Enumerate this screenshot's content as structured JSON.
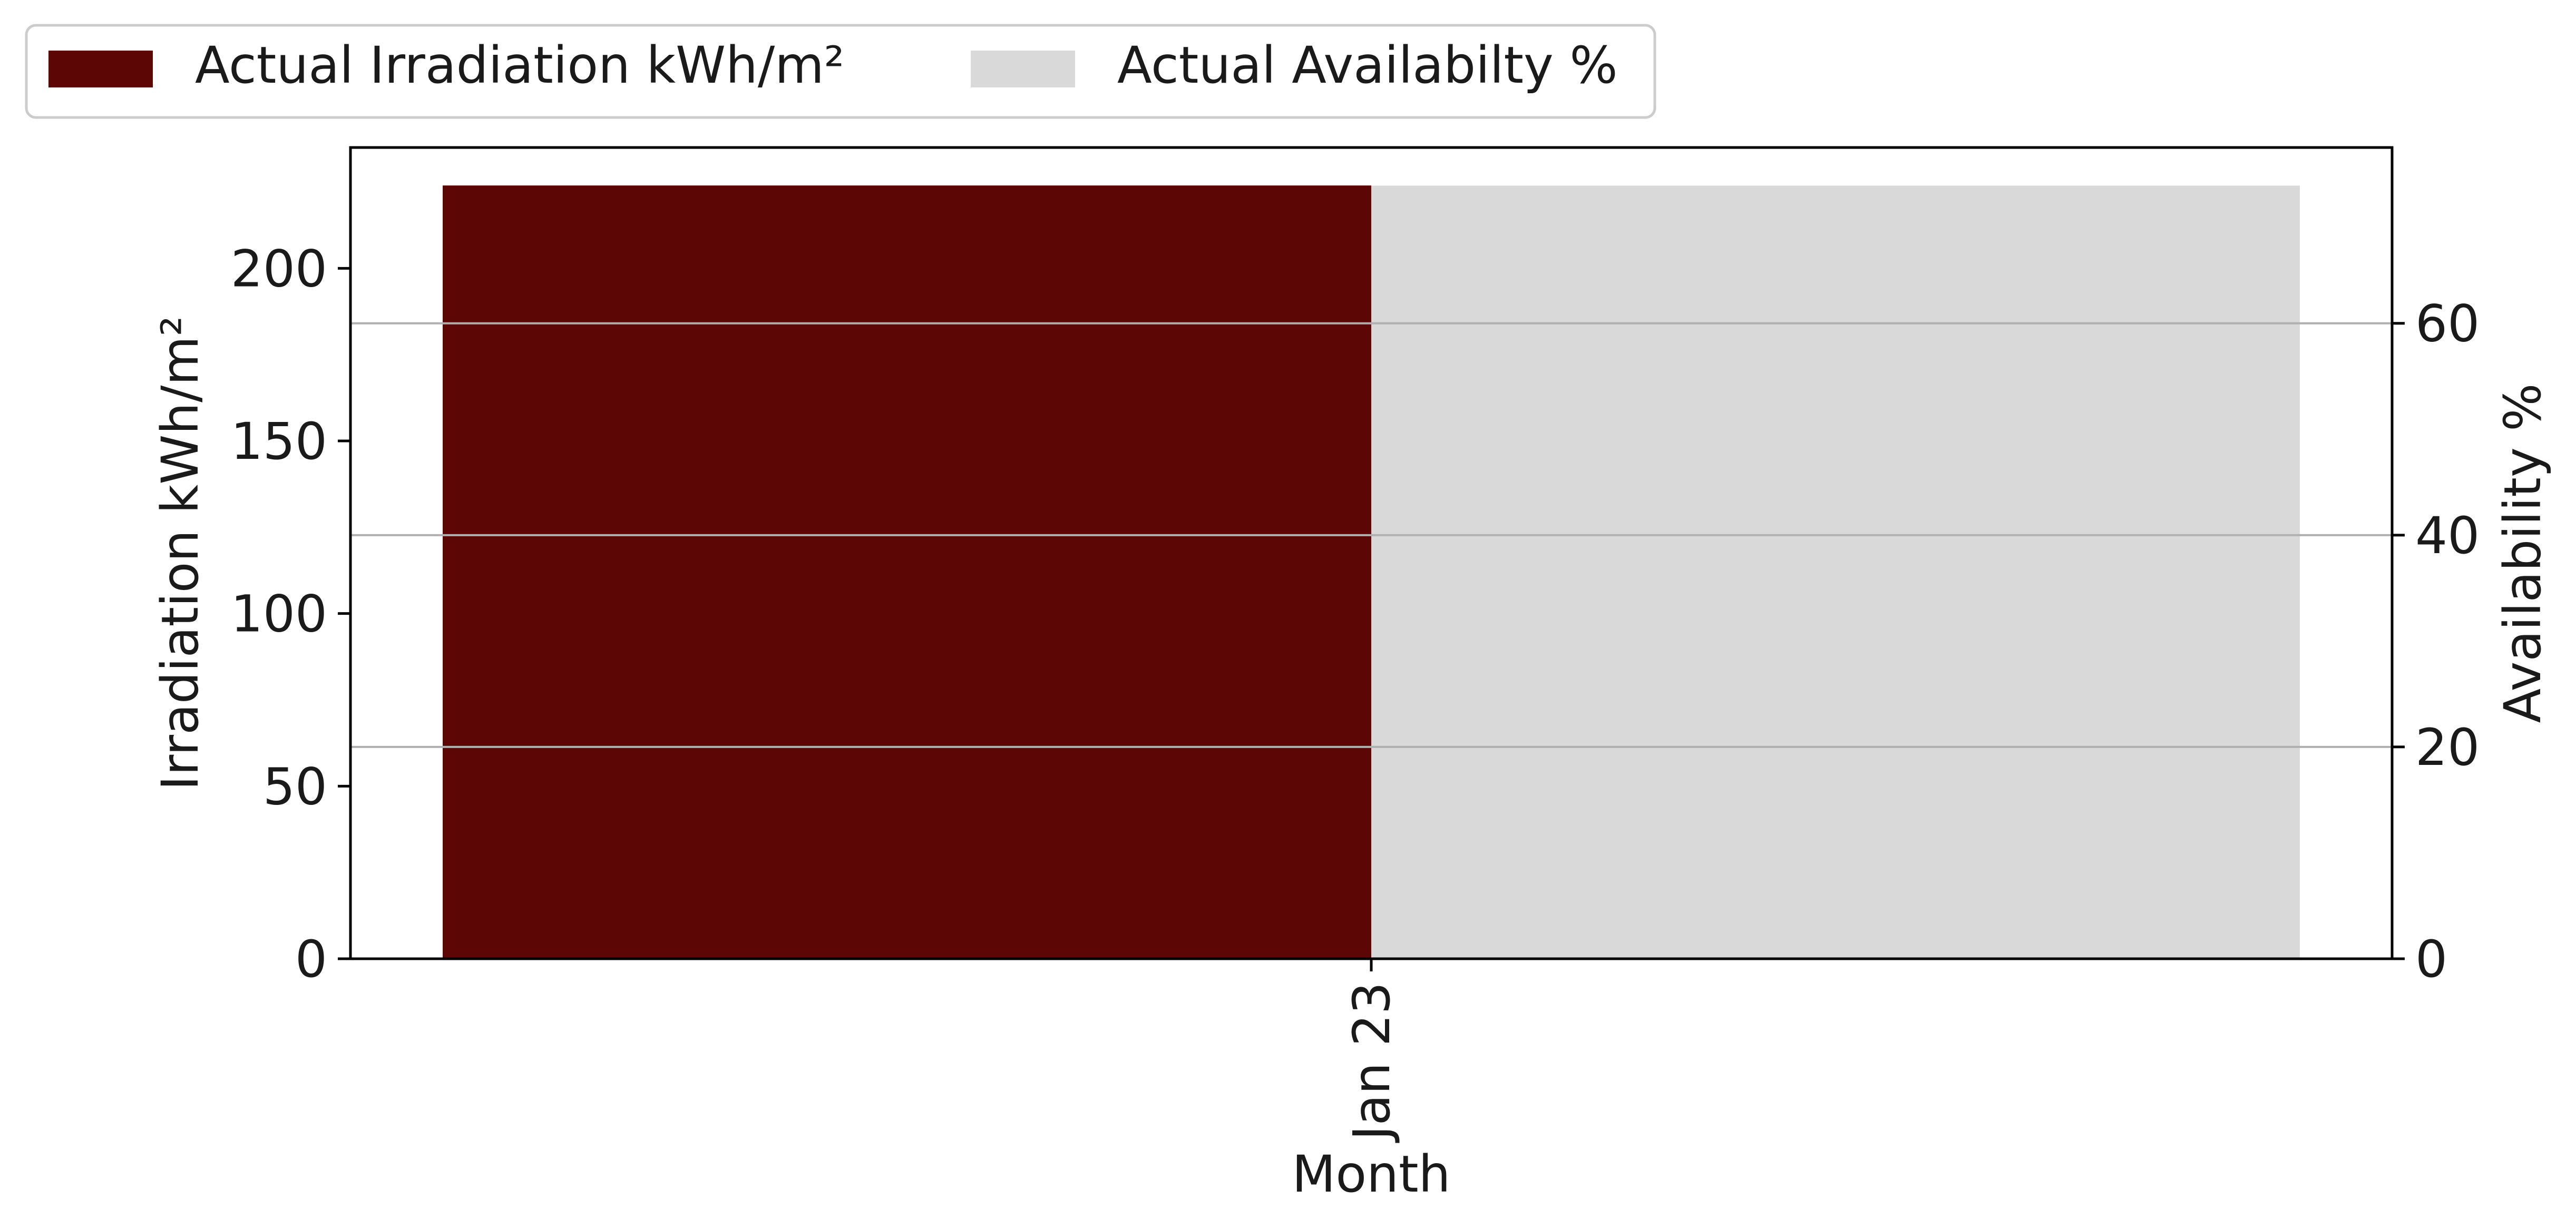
{
  "chart_data": {
    "type": "bar",
    "categories": [
      "Jan 23"
    ],
    "series": [
      {
        "name": "Actual Irradiation kWh/m²",
        "axis": "left",
        "values": [
          224
        ],
        "color": "#5c0606"
      },
      {
        "name": "Actual Availabilty %",
        "axis": "right",
        "values": [
          73
        ],
        "color": "#d9d9d9"
      }
    ],
    "xlabel": "Month",
    "ylabel_left": "Irradiation kWh/m²",
    "ylabel_right": "Availability %",
    "ylim_left": [
      0,
      235
    ],
    "ylim_right": [
      0,
      76.6
    ],
    "yticks_left": [
      "0",
      "50",
      "100",
      "150",
      "200"
    ],
    "yticks_right": [
      "0",
      "20",
      "40",
      "60"
    ],
    "grid": "horizontal on right axis",
    "legend_placement": "top-left, above plot"
  }
}
